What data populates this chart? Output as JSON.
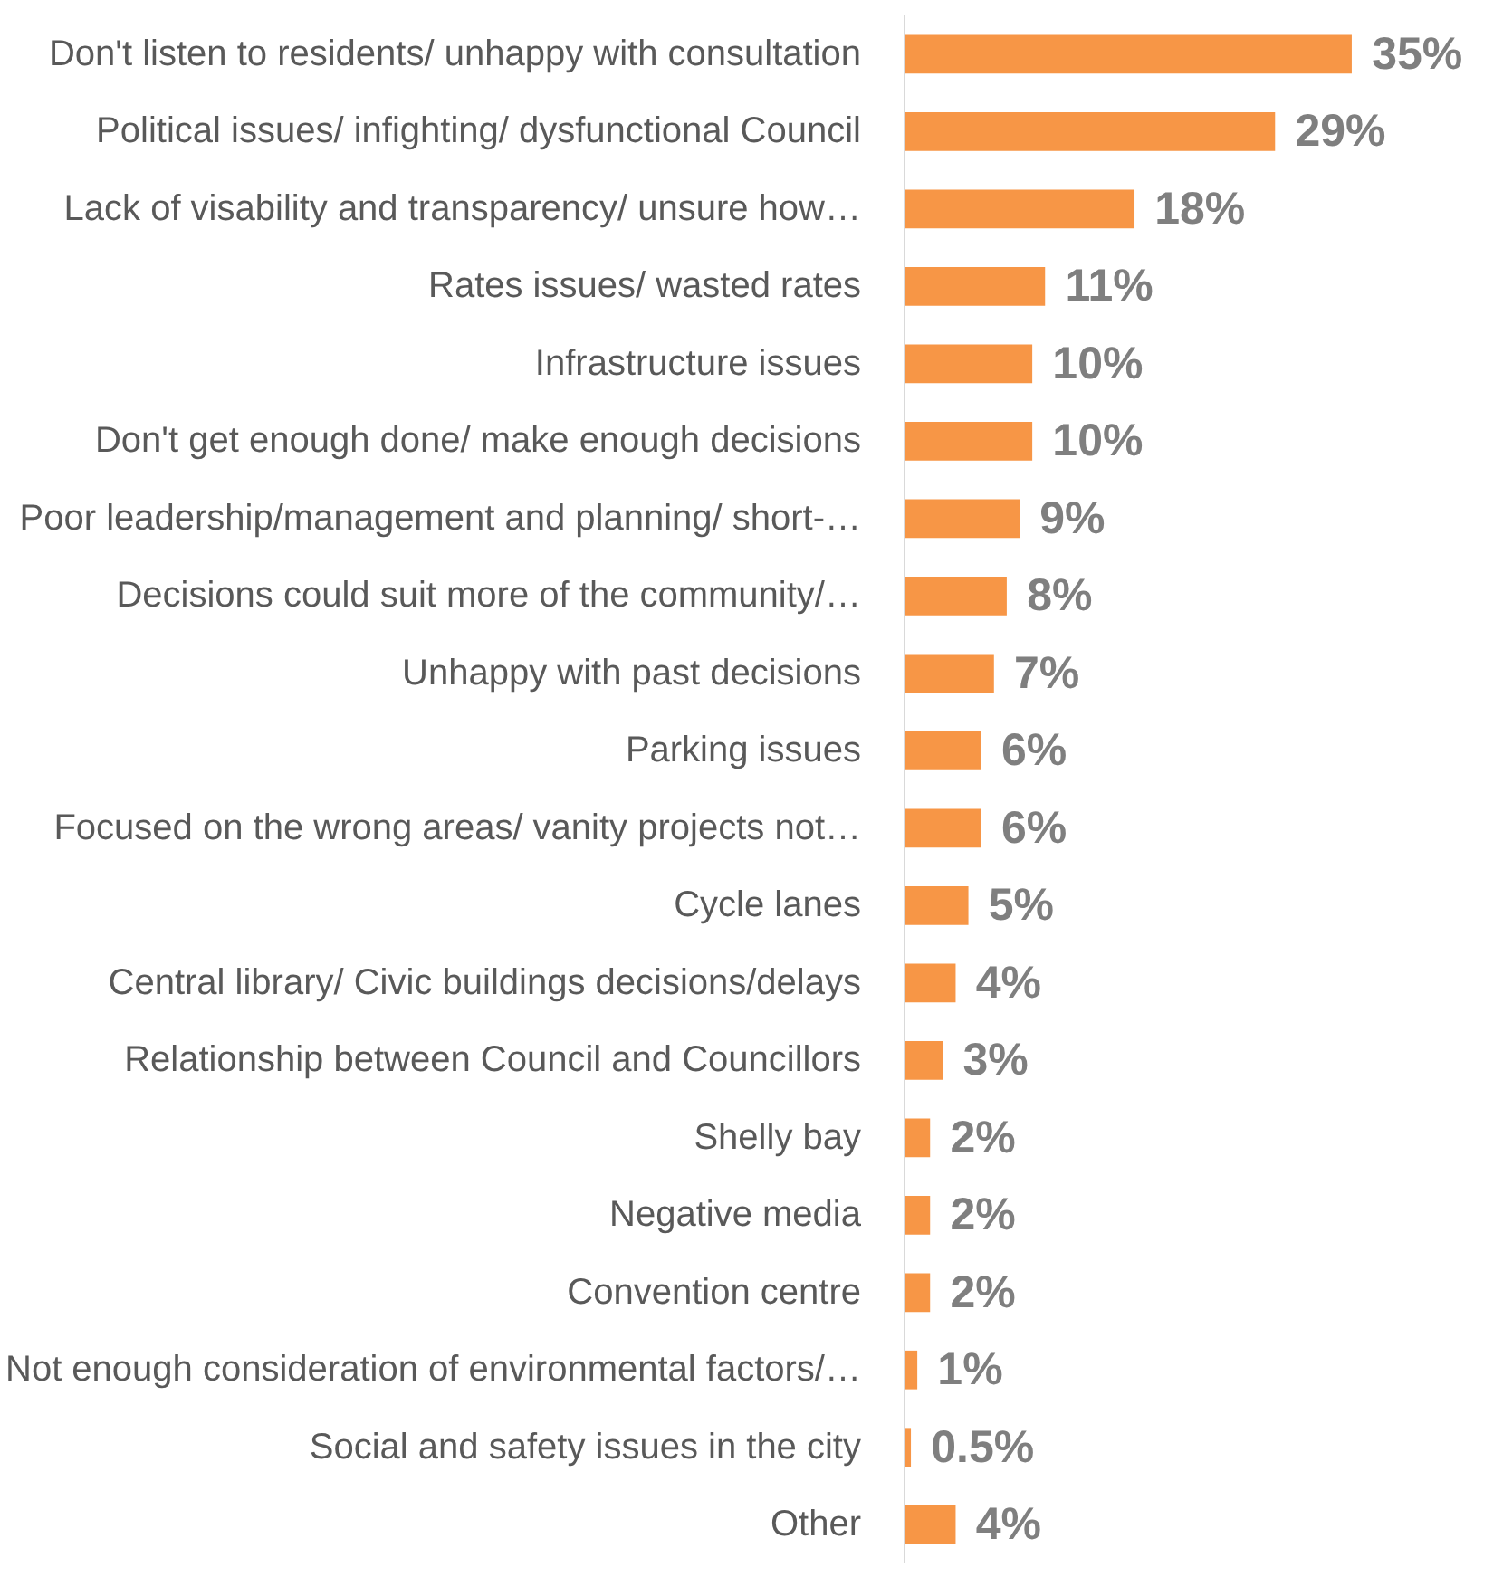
{
  "chart_data": {
    "type": "bar",
    "orientation": "horizontal",
    "data_labels": true,
    "grid": false,
    "color": "#f79646",
    "categories": [
      "Don't listen to residents/ unhappy with consultation",
      "Political issues/ infighting/ dysfunctional Council",
      "Lack of visability and transparency/ unsure how…",
      "Rates issues/ wasted rates",
      "Infrastructure issues",
      "Don't get enough done/ make enough decisions",
      "Poor leadership/management and planning/ short-…",
      "Decisions could suit more of the community/…",
      "Unhappy with past decisions",
      "Parking issues",
      "Focused on the wrong areas/ vanity projects not…",
      "Cycle lanes",
      "Central library/ Civic buildings decisions/delays",
      "Relationship between Council and Councillors",
      "Shelly bay",
      "Negative media",
      "Convention centre",
      "Not enough consideration of environmental factors/…",
      "Social and safety issues in the city",
      "Other"
    ],
    "values": [
      35,
      29,
      18,
      11,
      10,
      10,
      9,
      8,
      7,
      6,
      6,
      5,
      4,
      3,
      2,
      2,
      2,
      1,
      0.5,
      4
    ],
    "value_labels": [
      "35%",
      "29%",
      "18%",
      "11%",
      "10%",
      "10%",
      "9%",
      "8%",
      "7%",
      "6%",
      "6%",
      "5%",
      "4%",
      "3%",
      "2%",
      "2%",
      "2%",
      "1%",
      "0.5%",
      "4%"
    ]
  }
}
